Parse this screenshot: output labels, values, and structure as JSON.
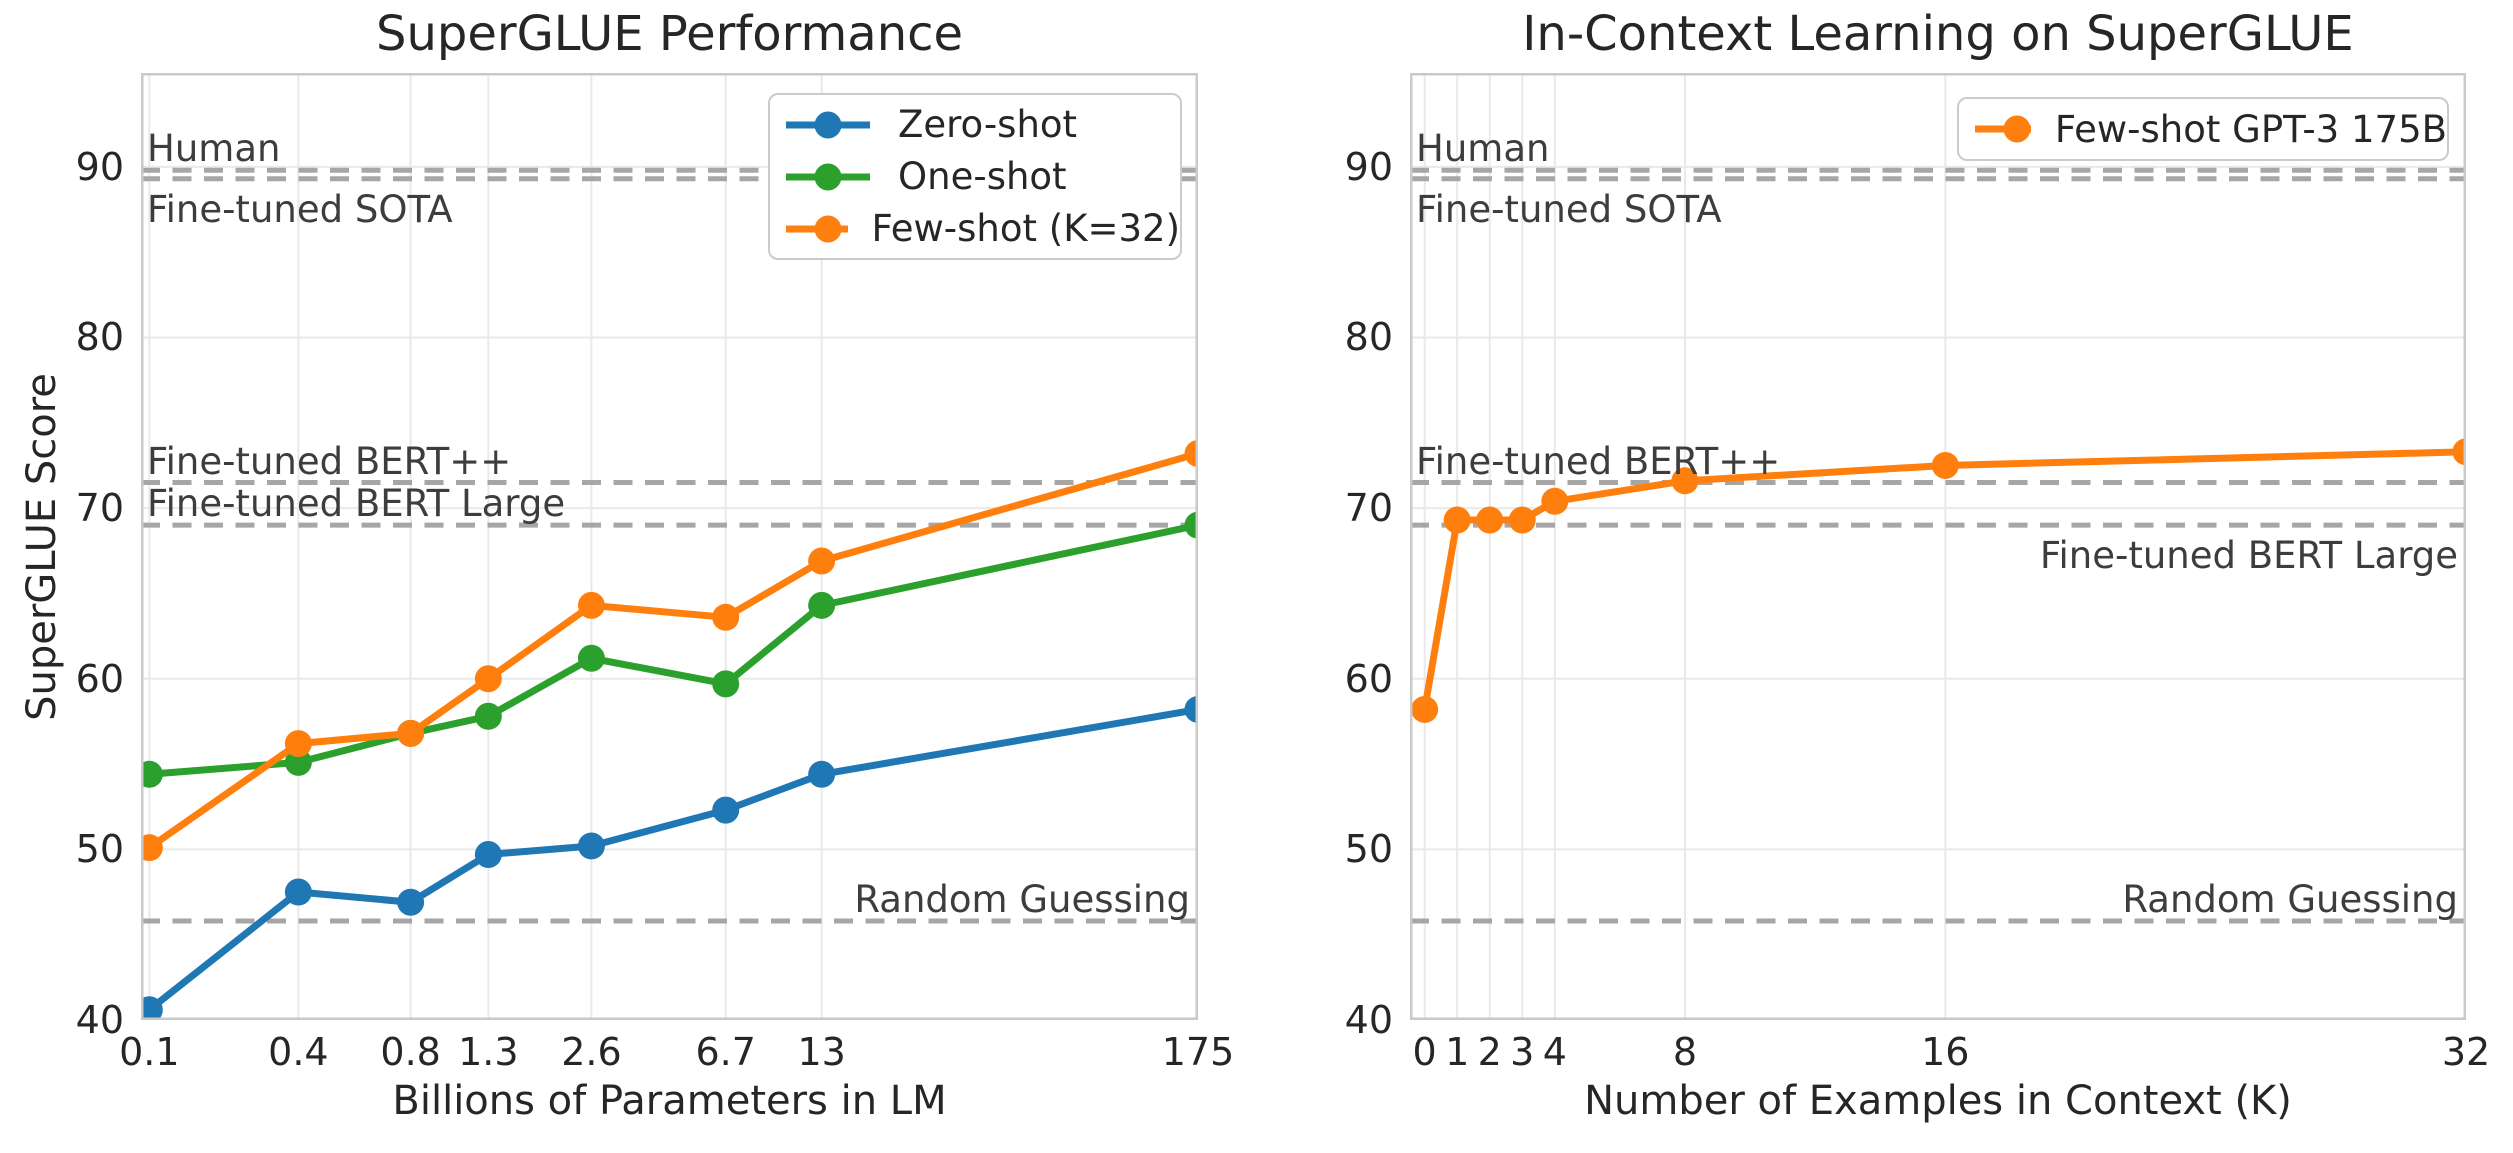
{
  "figure": {
    "background": "#ffffff"
  },
  "style": {
    "grid_color": "#e9e9e9",
    "spine_color": "#c9c9c9",
    "reference_line_color": "#a6a6a6",
    "text_color": "#262626",
    "annotation_color": "#3d3d3d"
  },
  "chart_data": [
    {
      "type": "line",
      "title": "SuperGLUE Performance",
      "xlabel": "Billions of Parameters in LM",
      "ylabel": "SuperGLUE Score",
      "x_scale": "log",
      "xlim": [
        0.118,
        175
      ],
      "ylim": [
        40,
        95.5
      ],
      "grid": true,
      "y_ticks": [
        40,
        50,
        60,
        70,
        80,
        90
      ],
      "x_ticks": [
        {
          "value": 0.125,
          "label": "0.1"
        },
        {
          "value": 0.35,
          "label": "0.4"
        },
        {
          "value": 0.76,
          "label": "0.8"
        },
        {
          "value": 1.3,
          "label": "1.3"
        },
        {
          "value": 2.65,
          "label": "2.6"
        },
        {
          "value": 6.7,
          "label": "6.7"
        },
        {
          "value": 13,
          "label": "13"
        },
        {
          "value": 175,
          "label": "175"
        }
      ],
      "series": [
        {
          "name": "Zero-shot",
          "color": "#1f77b4",
          "x": [
            0.125,
            0.35,
            0.76,
            1.3,
            2.65,
            6.7,
            13,
            175
          ],
          "y": [
            40.6,
            47.5,
            46.9,
            49.7,
            50.2,
            52.3,
            54.4,
            58.2
          ]
        },
        {
          "name": "One-shot",
          "color": "#2ca02c",
          "x": [
            0.125,
            0.35,
            0.76,
            1.3,
            2.65,
            6.7,
            13,
            175
          ],
          "y": [
            54.4,
            55.1,
            56.8,
            57.8,
            61.2,
            59.7,
            64.3,
            69.0
          ]
        },
        {
          "name": "Few-shot (K=32)",
          "color": "#ff7f0e",
          "x": [
            0.125,
            0.35,
            0.76,
            1.3,
            2.65,
            6.7,
            13,
            175
          ],
          "y": [
            50.1,
            56.2,
            56.8,
            60.0,
            64.3,
            63.6,
            66.9,
            73.2
          ]
        }
      ],
      "reference_lines": [
        {
          "label": "Human",
          "value": 89.8,
          "align": "left",
          "side": "above"
        },
        {
          "label": "Fine-tuned SOTA",
          "value": 89.3,
          "align": "left",
          "side": "below"
        },
        {
          "label": "Fine-tuned BERT++",
          "value": 71.5,
          "align": "left",
          "side": "above"
        },
        {
          "label": "Fine-tuned BERT Large",
          "value": 69.0,
          "align": "left",
          "side": "above"
        },
        {
          "label": "Random Guessing",
          "value": 45.8,
          "align": "right",
          "side": "above"
        }
      ],
      "legend_position": "upper right"
    },
    {
      "type": "line",
      "title": "In-Context Learning on SuperGLUE",
      "xlabel": "Number of Examples in Context (K)",
      "ylabel": "",
      "x_scale": "linear",
      "xlim": [
        -0.45,
        32
      ],
      "ylim": [
        40,
        95.5
      ],
      "grid": true,
      "y_ticks": [
        40,
        50,
        60,
        70,
        80,
        90
      ],
      "x_ticks": [
        {
          "value": 0,
          "label": "0"
        },
        {
          "value": 1,
          "label": "1"
        },
        {
          "value": 2,
          "label": "2"
        },
        {
          "value": 3,
          "label": "3"
        },
        {
          "value": 4,
          "label": "4"
        },
        {
          "value": 8,
          "label": "8"
        },
        {
          "value": 16,
          "label": "16"
        },
        {
          "value": 32,
          "label": "32"
        }
      ],
      "series": [
        {
          "name": "Few-shot GPT-3 175B",
          "color": "#ff7f0e",
          "x": [
            0,
            1,
            2,
            3,
            4,
            8,
            16,
            32
          ],
          "y": [
            58.2,
            69.3,
            69.3,
            69.3,
            70.4,
            71.6,
            72.5,
            73.3
          ]
        }
      ],
      "reference_lines": [
        {
          "label": "Human",
          "value": 89.8,
          "align": "left",
          "side": "above"
        },
        {
          "label": "Fine-tuned SOTA",
          "value": 89.3,
          "align": "left",
          "side": "below"
        },
        {
          "label": "Fine-tuned BERT++",
          "value": 71.5,
          "align": "left",
          "side": "above"
        },
        {
          "label": "Fine-tuned BERT Large",
          "value": 69.0,
          "align": "right",
          "side": "below"
        },
        {
          "label": "Random Guessing",
          "value": 45.8,
          "align": "right",
          "side": "above"
        }
      ],
      "legend_position": "upper right"
    }
  ]
}
